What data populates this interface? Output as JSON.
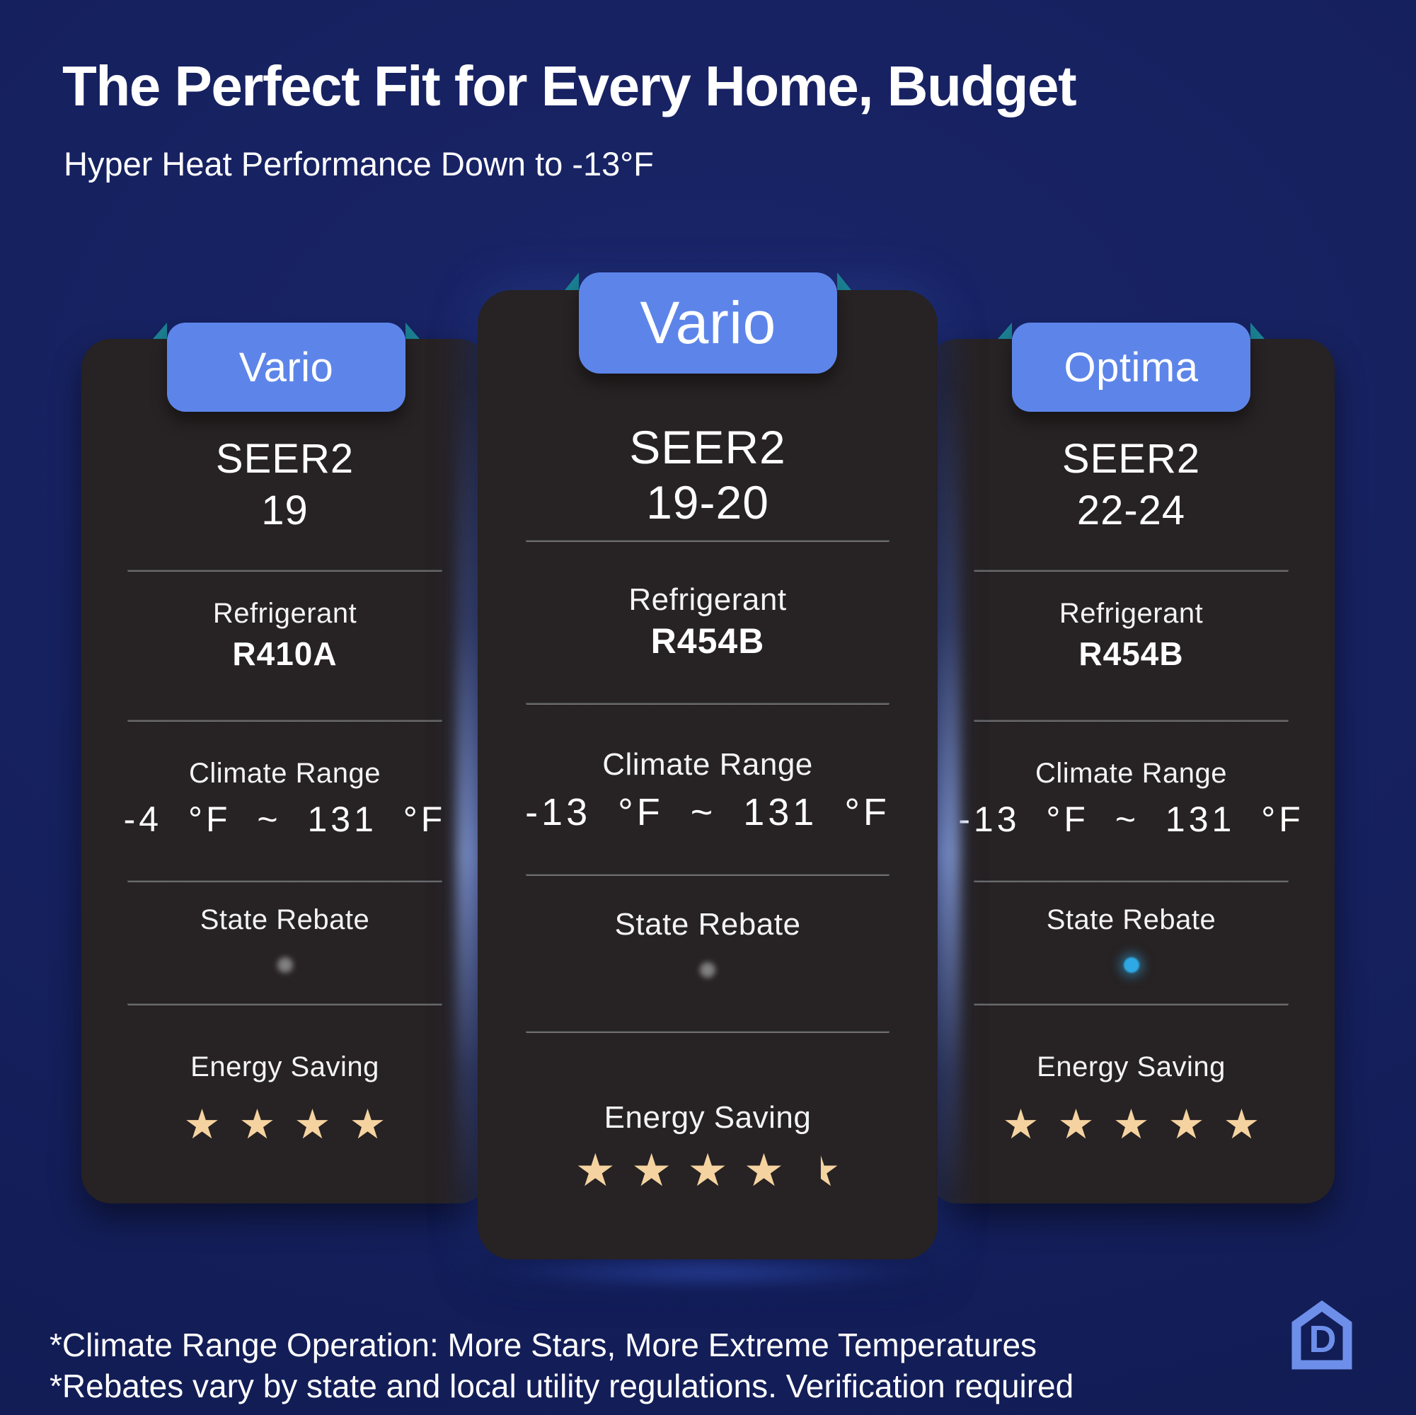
{
  "header": {
    "title": "The Perfect Fit for Every Home, Budget",
    "subtitle": "Hyper Heat Performance Down to -13°F"
  },
  "cards": [
    {
      "name": "Vario",
      "featured": false,
      "seer": {
        "label": "SEER2",
        "value": "19"
      },
      "refrigerant": {
        "label": "Refrigerant",
        "value": "R410A"
      },
      "climate": {
        "label": "Climate Range",
        "value": "-4 °F ~ 131 °F"
      },
      "rebate": {
        "label": "State Rebate",
        "available": false
      },
      "energy": {
        "label": "Energy Saving",
        "stars": 4
      }
    },
    {
      "name": "Vario",
      "featured": true,
      "seer": {
        "label": "SEER2",
        "value": "19-20"
      },
      "refrigerant": {
        "label": "Refrigerant",
        "value": "R454B"
      },
      "climate": {
        "label": "Climate Range",
        "value": "-13 °F ~ 131 °F"
      },
      "rebate": {
        "label": "State Rebate",
        "available": false
      },
      "energy": {
        "label": "Energy Saving",
        "stars": 4.5
      }
    },
    {
      "name": "Optima",
      "featured": false,
      "seer": {
        "label": "SEER2",
        "value": "22-24"
      },
      "refrigerant": {
        "label": "Refrigerant",
        "value": "R454B"
      },
      "climate": {
        "label": "Climate Range",
        "value": "-13 °F ~ 131 °F"
      },
      "rebate": {
        "label": "State Rebate",
        "available": true
      },
      "energy": {
        "label": "Energy Saving",
        "stars": 5
      }
    }
  ],
  "footnotes": [
    "*Climate Range Operation: More Stars, More Extreme Temperatures",
    "*Rebates vary by state and local utility regulations. Verification required"
  ],
  "logo": {
    "name": "house-d-logo"
  },
  "colors": {
    "background_navy": "#15205d",
    "card_charcoal": "#272223",
    "tab_blue": "#5d85e9",
    "ribbon_teal": "#1b7f92",
    "star_gold": "#f5d3a0",
    "rebate_active_blue": "#2fa9e5",
    "rebate_inactive_gray": "#8b8b8b",
    "text_white": "#ffffff"
  }
}
